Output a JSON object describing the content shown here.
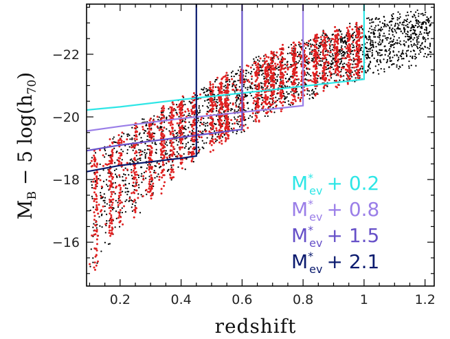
{
  "chart_data": {
    "type": "scatter",
    "title": "",
    "xlabel": "redshift",
    "ylabel": {
      "main": "M",
      "sub": "B",
      "rest": " − 5 log(h",
      "rest_sub": "70",
      "close": ")"
    },
    "xlim": [
      0.09,
      1.23
    ],
    "ylim": [
      -14.6,
      -23.6
    ],
    "x_ticks": [
      {
        "value": 0.2,
        "label": "0.2"
      },
      {
        "value": 0.4,
        "label": "0.4"
      },
      {
        "value": 0.6,
        "label": "0.6"
      },
      {
        "value": 0.8,
        "label": "0.8"
      },
      {
        "value": 1.0,
        "label": "1"
      },
      {
        "value": 1.2,
        "label": "1.2"
      }
    ],
    "y_ticks": [
      {
        "value": -16,
        "label": "−16"
      },
      {
        "value": -18,
        "label": "−18"
      },
      {
        "value": -20,
        "label": "−20"
      },
      {
        "value": -22,
        "label": "−22"
      }
    ],
    "x_minor_step": 0.05,
    "y_minor_step": 0.5,
    "grid": false,
    "scatter_series": [
      {
        "color": "#000000",
        "count": 2200,
        "z_range": [
          0.1,
          1.22
        ]
      },
      {
        "color": "#e02020",
        "count": 2100,
        "z_range": [
          0.1,
          1.0
        ]
      }
    ],
    "limit_curve": [
      [
        0.1,
        -14.9
      ],
      [
        0.2,
        -16.5
      ],
      [
        0.3,
        -17.4
      ],
      [
        0.4,
        -18.3
      ],
      [
        0.5,
        -19.0
      ],
      [
        0.6,
        -19.6
      ],
      [
        0.7,
        -20.2
      ],
      [
        0.8,
        -20.6
      ],
      [
        0.9,
        -21.0
      ],
      [
        1.0,
        -21.3
      ],
      [
        1.1,
        -21.6
      ],
      [
        1.2,
        -21.8
      ]
    ],
    "bright_edge": [
      [
        0.1,
        -18.8
      ],
      [
        0.3,
        -20.0
      ],
      [
        0.5,
        -21.0
      ],
      [
        0.7,
        -22.0
      ],
      [
        0.9,
        -22.7
      ],
      [
        1.1,
        -23.2
      ],
      [
        1.2,
        -23.4
      ]
    ],
    "series": [
      {
        "name": "M*ev + 0.2",
        "color": "#2ee6e6",
        "x": [
          0.09,
          0.2,
          0.4,
          0.6,
          0.8,
          1.0,
          1.0
        ],
        "y": [
          -20.22,
          -20.32,
          -20.55,
          -20.76,
          -20.98,
          -21.2,
          -23.6
        ]
      },
      {
        "name": "M*ev + 0.8",
        "color": "#9a7ee8",
        "x": [
          0.09,
          0.2,
          0.4,
          0.6,
          0.8,
          0.8
        ],
        "y": [
          -19.55,
          -19.7,
          -19.95,
          -20.15,
          -20.36,
          -23.6
        ]
      },
      {
        "name": "M*ev + 1.5",
        "color": "#6650c8",
        "x": [
          0.09,
          0.2,
          0.4,
          0.6,
          0.6
        ],
        "y": [
          -18.92,
          -19.1,
          -19.35,
          -19.6,
          -23.6
        ]
      },
      {
        "name": "M*ev + 2.1",
        "color": "#0a1a6e",
        "x": [
          0.09,
          0.2,
          0.4,
          0.45,
          0.45
        ],
        "y": [
          -18.25,
          -18.45,
          -18.68,
          -18.75,
          -23.6
        ]
      }
    ]
  },
  "legend": [
    {
      "prefix": "M",
      "sup": "*",
      "sub": "ev",
      "suffix": "+ 0.2",
      "color": "#2ee6e6"
    },
    {
      "prefix": "M",
      "sup": "*",
      "sub": "ev",
      "suffix": "+ 0.8",
      "color": "#9a7ee8"
    },
    {
      "prefix": "M",
      "sup": "*",
      "sub": "ev",
      "suffix": "+ 1.5",
      "color": "#6650c8"
    },
    {
      "prefix": "M",
      "sup": "*",
      "sub": "ev",
      "suffix": "+ 2.1",
      "color": "#0a1a6e"
    }
  ]
}
